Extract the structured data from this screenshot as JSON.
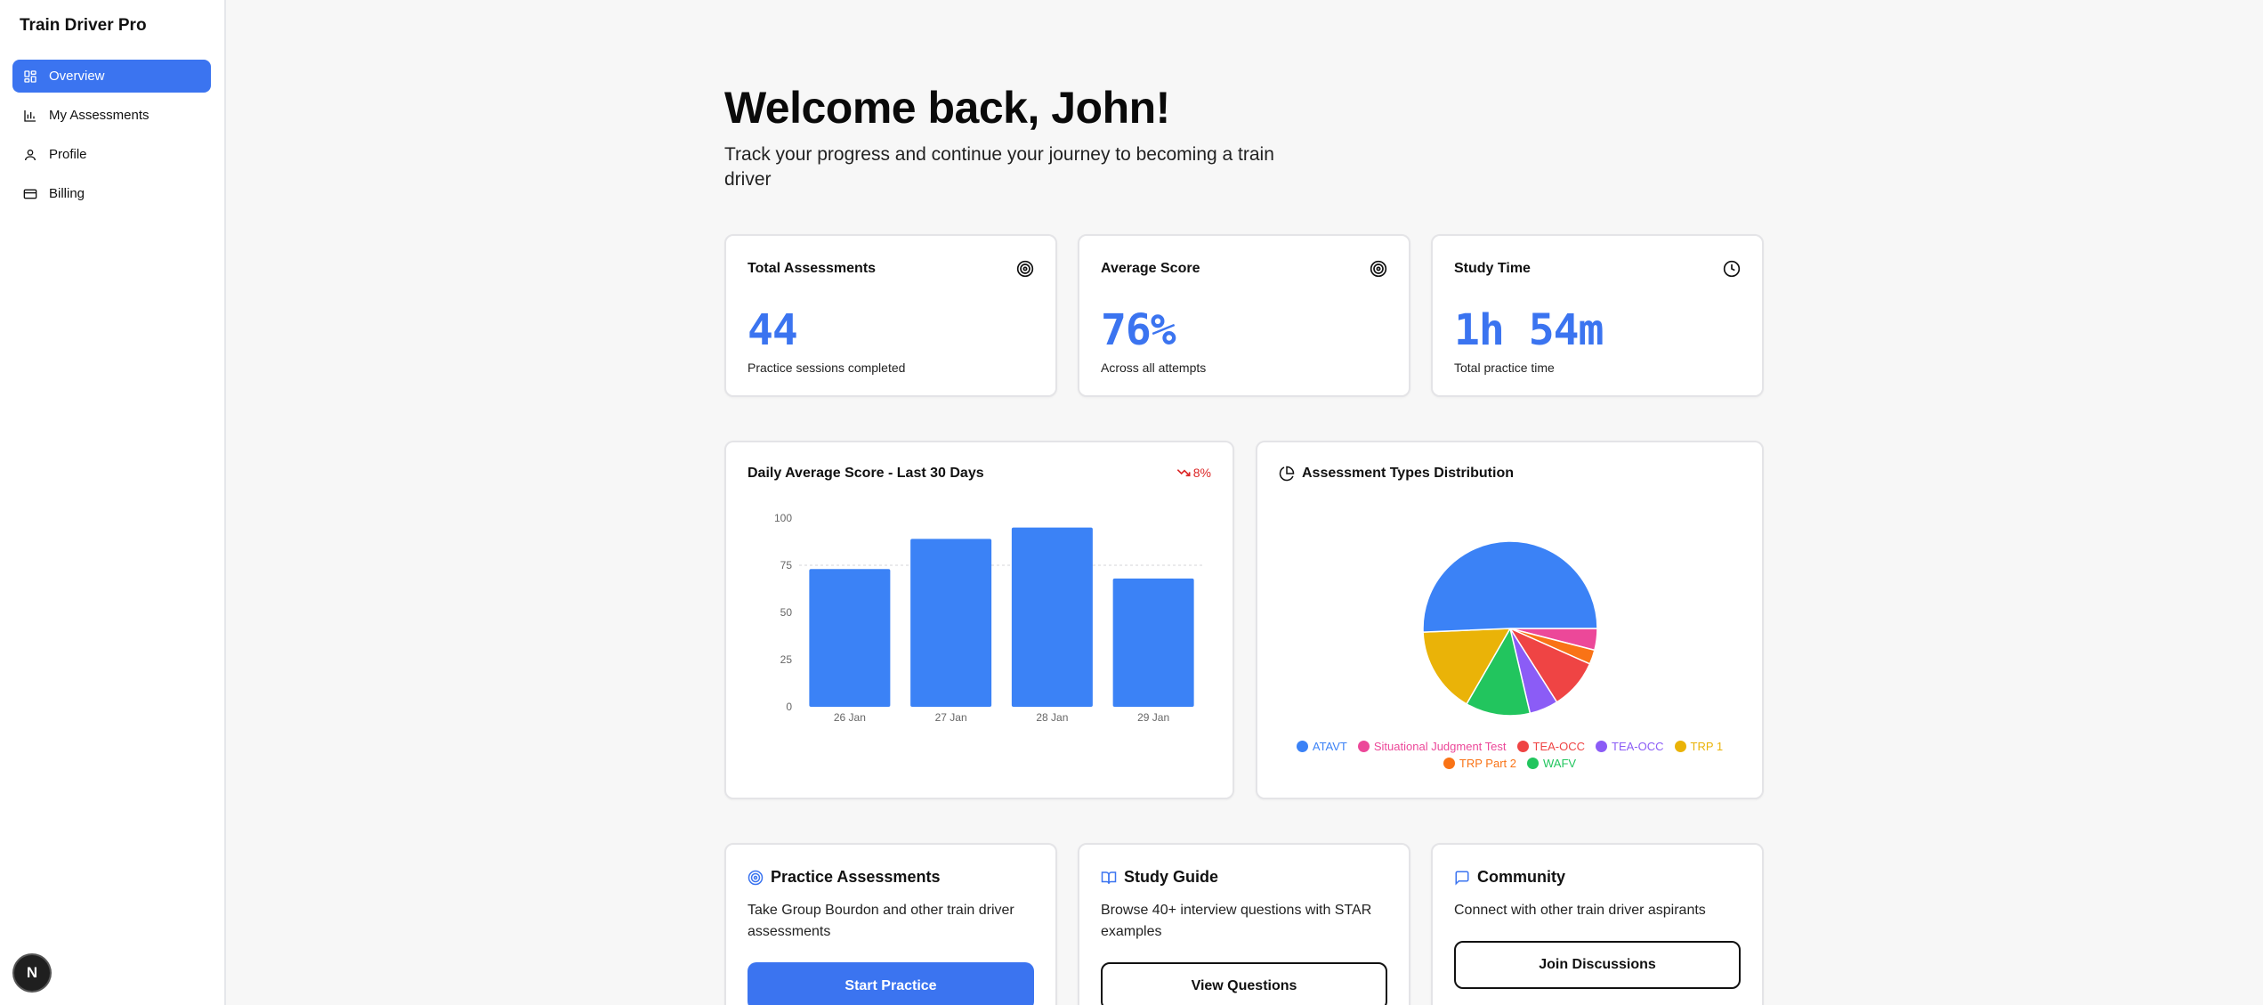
{
  "brand": "Train Driver Pro",
  "nav": [
    {
      "label": "Overview",
      "icon": "dashboard-icon",
      "active": true
    },
    {
      "label": "My Assessments",
      "icon": "bar-chart-icon",
      "active": false
    },
    {
      "label": "Profile",
      "icon": "user-icon",
      "active": false
    },
    {
      "label": "Billing",
      "icon": "credit-card-icon",
      "active": false
    }
  ],
  "dev_badge": "N",
  "header": {
    "title": "Welcome back, John!",
    "subtitle": "Track your progress and continue your journey to becoming a train driver"
  },
  "stats": [
    {
      "title": "Total Assessments",
      "value": "44",
      "caption": "Practice sessions completed",
      "icon": "target-icon"
    },
    {
      "title": "Average Score",
      "value": "76%",
      "caption": "Across all attempts",
      "icon": "target-icon"
    },
    {
      "title": "Study Time",
      "value": "1h 54m",
      "caption": "Total practice time",
      "icon": "clock-icon"
    }
  ],
  "daily_chart": {
    "title": "Daily Average Score - Last 30 Days",
    "trend": "8%",
    "trend_color": "#dc2626"
  },
  "types_chart": {
    "title": "Assessment Types Distribution"
  },
  "chart_data": [
    {
      "type": "bar",
      "categories": [
        "26 Jan",
        "27 Jan",
        "28 Jan",
        "29 Jan"
      ],
      "values": [
        73,
        89,
        95,
        68
      ],
      "yticks": [
        0,
        25,
        50,
        75,
        100
      ],
      "ylim": [
        0,
        100
      ],
      "color": "#3b82f6"
    },
    {
      "type": "pie",
      "labels": [
        "ATAVT",
        "Situational Judgment Test",
        "TEA-OCC",
        "TEA-OCC",
        "TRP 1",
        "TRP Part 2",
        "WAFV"
      ],
      "order_clockwise_from_east": [
        "Situational Judgment Test",
        "TRP Part 2",
        "TEA-OCC",
        "TEA-OCC",
        "WAFV",
        "TRP 1",
        "ATAVT"
      ],
      "values": [
        19,
        1.5,
        3.5,
        2,
        6,
        1,
        4.5
      ],
      "colors": [
        "#3b82f6",
        "#ec4899",
        "#ef4444",
        "#8b5cf6",
        "#eab308",
        "#f97316",
        "#22c55e"
      ]
    }
  ],
  "features": [
    {
      "title": "Practice Assessments",
      "icon": "target-icon",
      "desc": "Take Group Bourdon and other train driver assessments",
      "button": "Start Practice",
      "variant": "primary"
    },
    {
      "title": "Study Guide",
      "icon": "book-open-icon",
      "desc": "Browse 40+ interview questions with STAR examples",
      "button": "View Questions",
      "variant": "outline"
    },
    {
      "title": "Community",
      "icon": "message-square-icon",
      "desc": "Connect with other train driver aspirants",
      "button": "Join Discussions",
      "variant": "outline"
    }
  ]
}
